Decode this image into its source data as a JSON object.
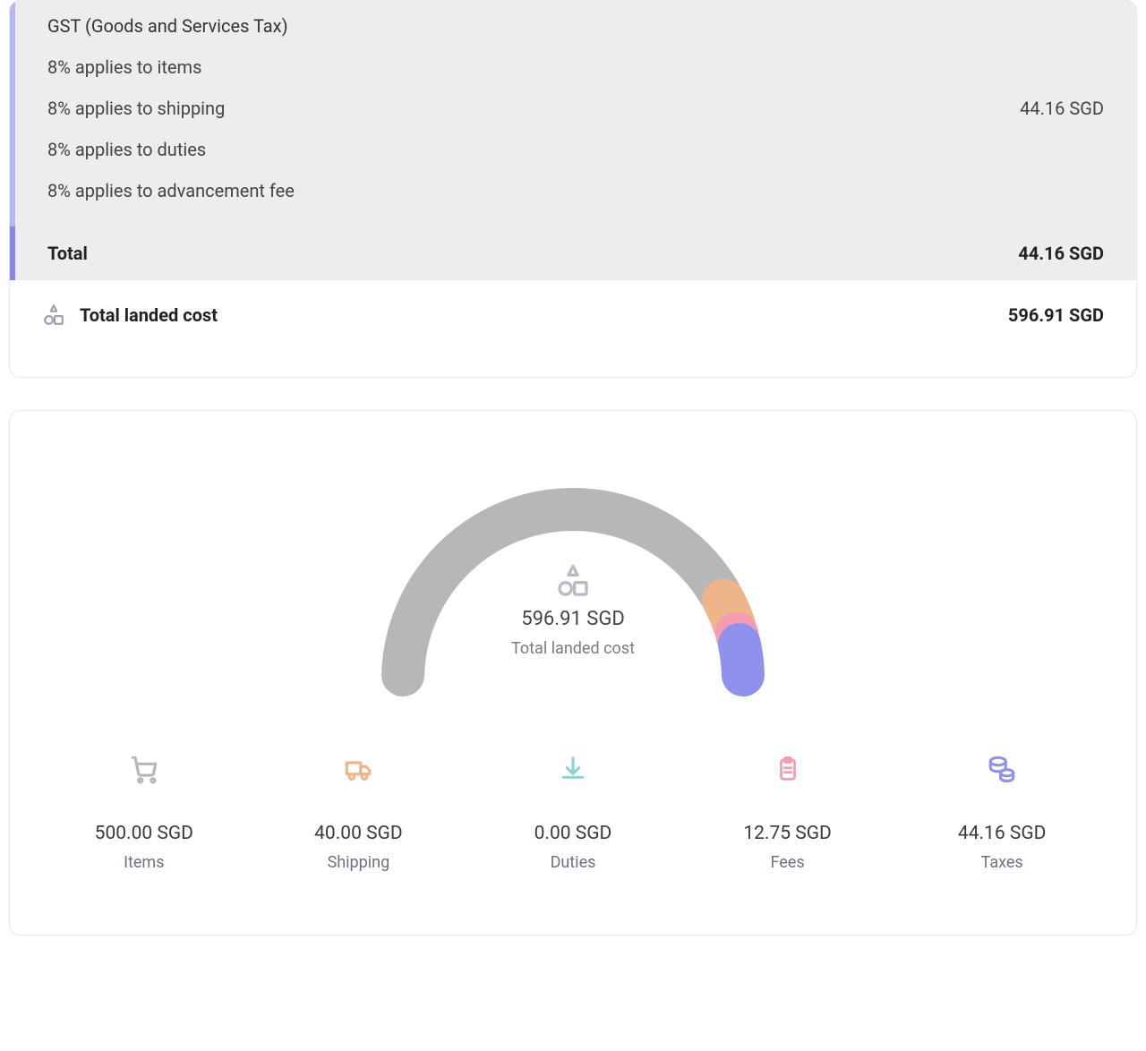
{
  "tax": {
    "title": "GST (Goods and Services Tax)",
    "lines": [
      {
        "label": "8% applies to items",
        "value": ""
      },
      {
        "label": "8% applies to shipping",
        "value": "44.16 SGD"
      },
      {
        "label": "8% applies to duties",
        "value": ""
      },
      {
        "label": "8% applies to advancement fee",
        "value": ""
      }
    ],
    "total_label": "Total",
    "total_value": "44.16 SGD"
  },
  "landed": {
    "label": "Total landed cost",
    "value": "596.91 SGD"
  },
  "gauge": {
    "amount": "596.91 SGD",
    "label": "Total landed cost",
    "segments": [
      {
        "name": "items",
        "value": 500.0,
        "color": "#b7b7b7"
      },
      {
        "name": "shipping",
        "value": 40.0,
        "color": "#efb58a"
      },
      {
        "name": "duties",
        "value": 0.0,
        "color": "#8dd6d0"
      },
      {
        "name": "fees",
        "value": 12.75,
        "color": "#f39bb0"
      },
      {
        "name": "taxes",
        "value": 44.16,
        "color": "#8e92ec"
      }
    ],
    "stroke_width": 48,
    "gap_deg": 3
  },
  "breakdown": [
    {
      "icon": "cart",
      "color": "#b7b7b7",
      "amount": "500.00 SGD",
      "label": "Items"
    },
    {
      "icon": "truck",
      "color": "#efb58a",
      "amount": "40.00 SGD",
      "label": "Shipping"
    },
    {
      "icon": "download",
      "color": "#8dd6d0",
      "amount": "0.00 SGD",
      "label": "Duties"
    },
    {
      "icon": "clipboard",
      "color": "#f39bb0",
      "amount": "12.75 SGD",
      "label": "Fees"
    },
    {
      "icon": "coins",
      "color": "#8e92ec",
      "amount": "44.16 SGD",
      "label": "Taxes"
    }
  ],
  "colors": {
    "border": "#e5e7eb",
    "panel_bg": "#ededed",
    "accent_left_light": "#b5b6f5",
    "accent_left_dark": "#8587ee",
    "text": "#1f2937",
    "muted": "#6b7280"
  }
}
